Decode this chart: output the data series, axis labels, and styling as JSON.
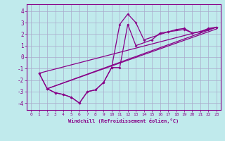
{
  "xlabel": "Windchill (Refroidissement éolien,°C)",
  "background_color": "#c0eaec",
  "line_color": "#880088",
  "grid_color": "#aaaacc",
  "xlim": [
    -0.5,
    23.5
  ],
  "ylim": [
    -4.6,
    4.6
  ],
  "xticks": [
    0,
    1,
    2,
    3,
    4,
    5,
    6,
    7,
    8,
    9,
    10,
    11,
    12,
    13,
    14,
    15,
    16,
    17,
    18,
    19,
    20,
    21,
    22,
    23
  ],
  "yticks": [
    -4,
    -3,
    -2,
    -1,
    0,
    1,
    2,
    3,
    4
  ],
  "line1_x": [
    1,
    2,
    3,
    4,
    5,
    6,
    7,
    8,
    9,
    10,
    11,
    12,
    13,
    14,
    17,
    18,
    19,
    20,
    21,
    22,
    23
  ],
  "line1_y": [
    -1.4,
    -2.75,
    -3.1,
    -3.25,
    -3.5,
    -4.0,
    -3.0,
    -2.85,
    -2.2,
    -0.9,
    2.85,
    3.75,
    3.0,
    1.5,
    2.2,
    2.4,
    2.5,
    2.1,
    2.2,
    2.5,
    2.6
  ],
  "line2_x": [
    1,
    2,
    3,
    4,
    5,
    6,
    7,
    8,
    9,
    10,
    11,
    12,
    13,
    15,
    16,
    17,
    19,
    20,
    21,
    22,
    23
  ],
  "line2_y": [
    -1.4,
    -2.75,
    -3.1,
    -3.25,
    -3.5,
    -4.0,
    -3.0,
    -2.85,
    -2.2,
    -0.9,
    -0.9,
    2.85,
    1.0,
    1.5,
    2.1,
    2.2,
    2.4,
    2.1,
    2.2,
    2.4,
    2.6
  ],
  "trendline1_x": [
    1,
    23
  ],
  "trendline1_y": [
    -1.4,
    2.6
  ],
  "trendline2_x": [
    2,
    23
  ],
  "trendline2_y": [
    -2.75,
    2.6
  ],
  "trendline3_x": [
    2,
    23
  ],
  "trendline3_y": [
    -2.75,
    2.45
  ]
}
